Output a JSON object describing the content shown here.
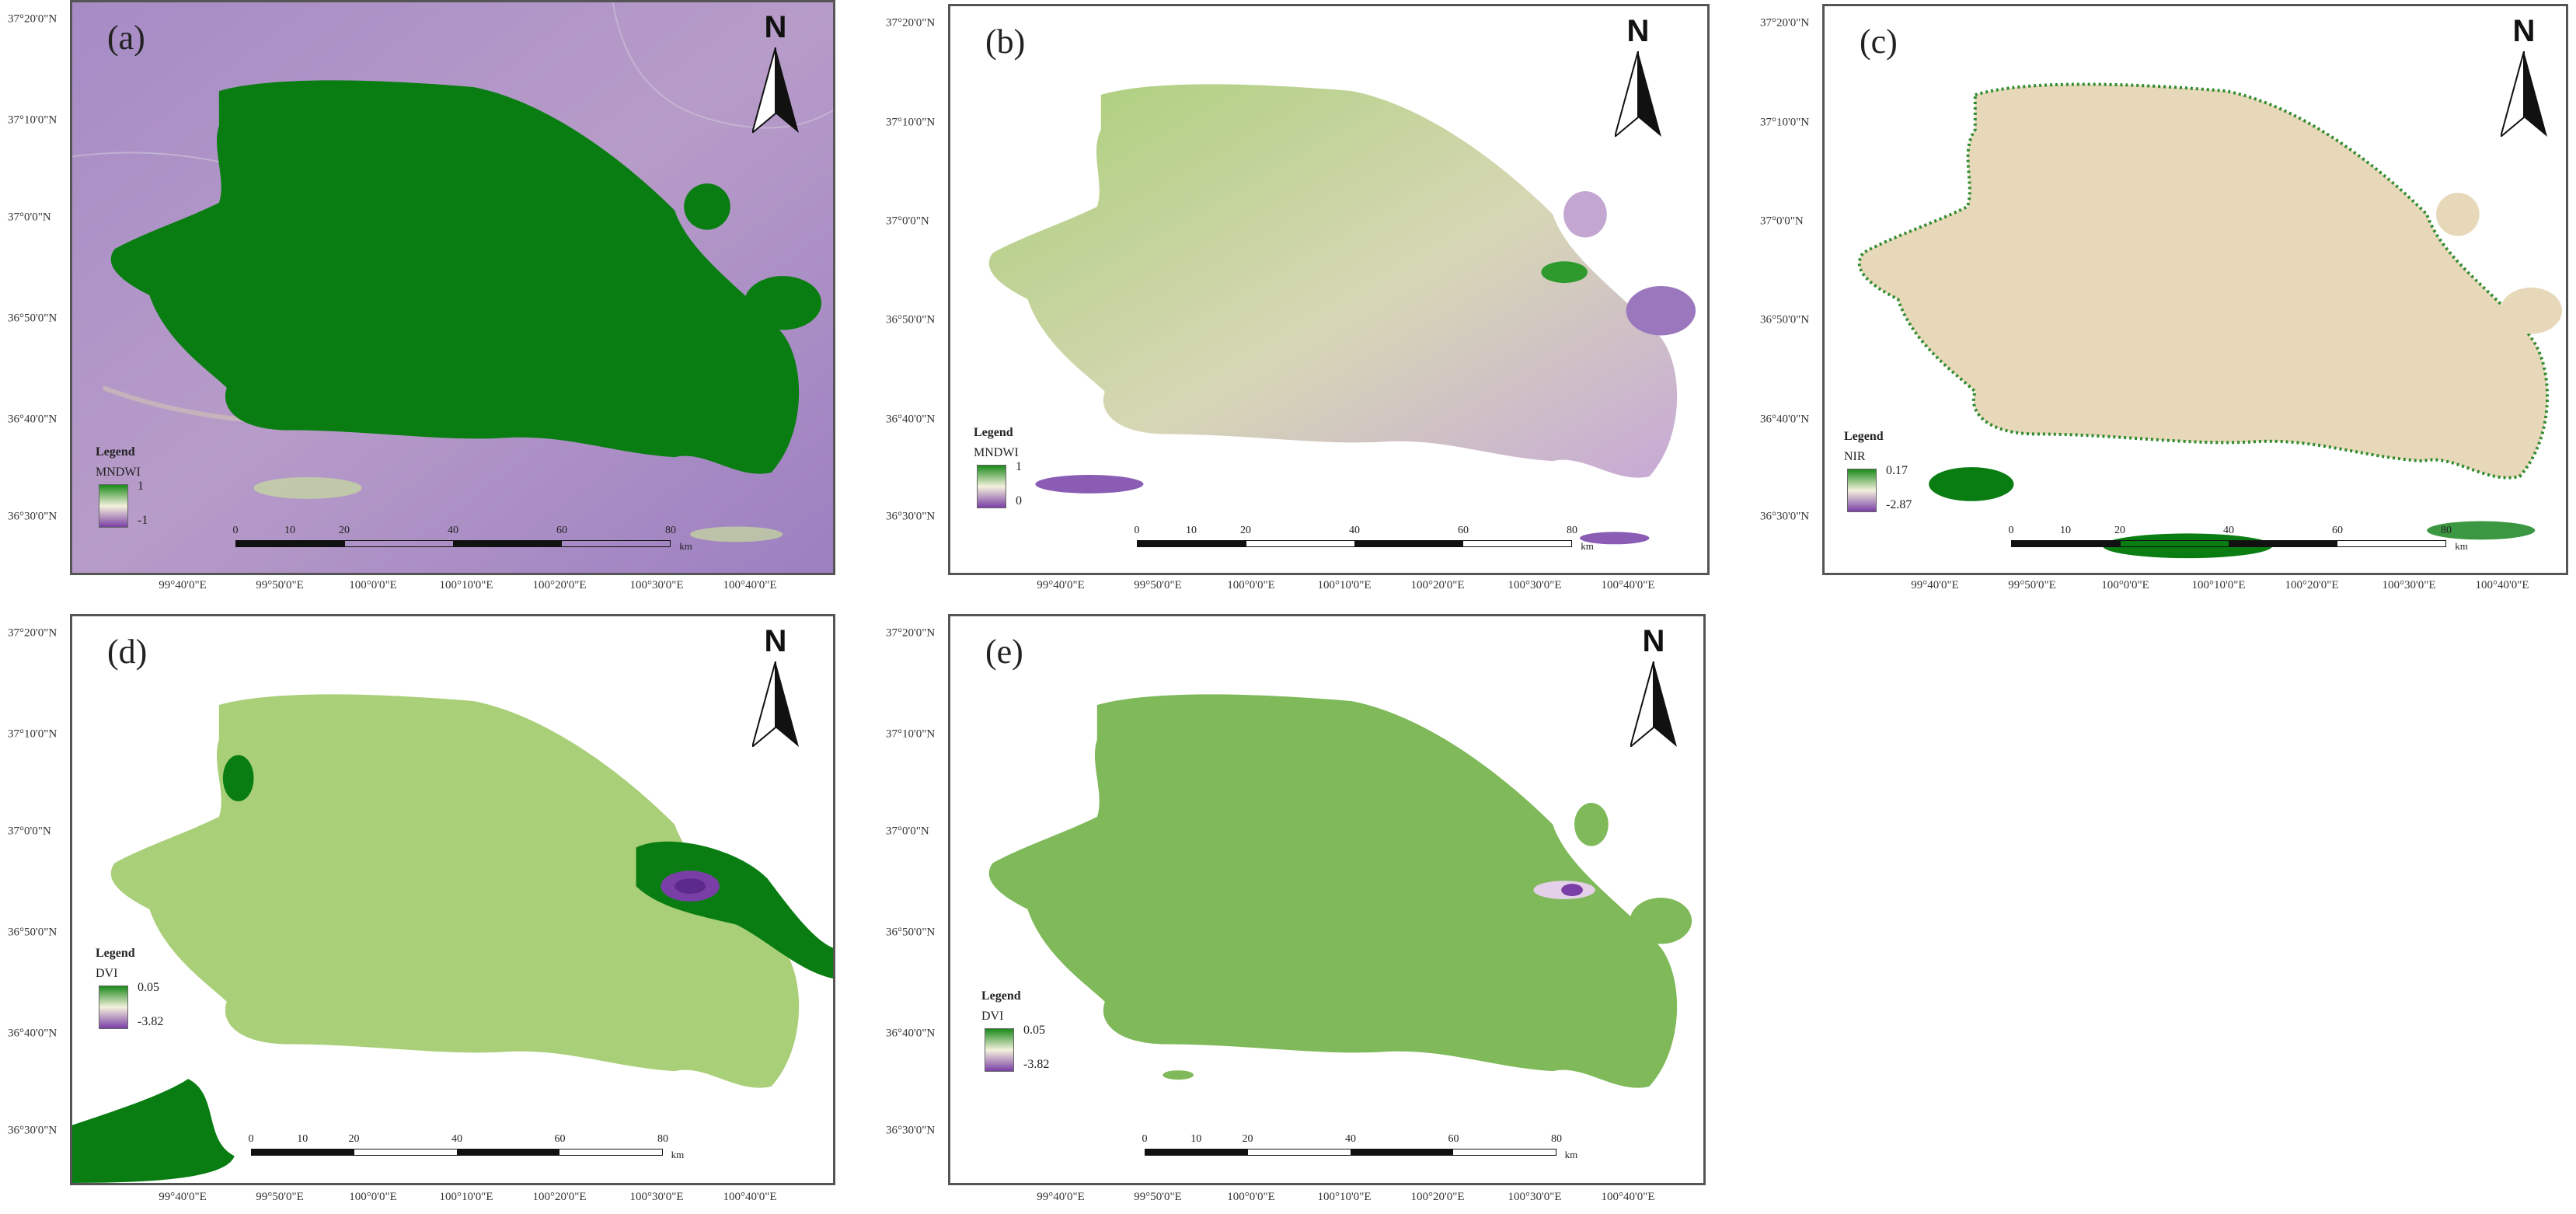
{
  "panels": [
    {
      "id": "a",
      "label": "(a)",
      "legend": {
        "title": "Legend",
        "index": "MNDWI",
        "max": "1",
        "min": "-1"
      },
      "lat_labels": [
        "37°20'0\"N",
        "37°10'0\"N",
        "37°0'0\"N",
        "36°50'0\"N",
        "36°40'0\"N",
        "36°30'0\"N"
      ],
      "lon_labels": [
        "99°40'0\"E",
        "99°50'0\"E",
        "100°0'0\"E",
        "100°10'0\"E",
        "100°20'0\"E",
        "100°30'0\"E",
        "100°40'0\"E"
      ],
      "scale": {
        "ticks": [
          "0",
          "10",
          "20",
          "40",
          "60",
          "80"
        ],
        "unit": "km"
      },
      "north": "N"
    },
    {
      "id": "b",
      "label": "(b)",
      "legend": {
        "title": "Legend",
        "index": "MNDWI",
        "max": "1",
        "min": "0"
      },
      "lat_labels": [
        "37°20'0\"N",
        "37°10'0\"N",
        "37°0'0\"N",
        "36°50'0\"N",
        "36°40'0\"N",
        "36°30'0\"N"
      ],
      "lon_labels": [
        "99°40'0\"E",
        "99°50'0\"E",
        "100°0'0\"E",
        "100°10'0\"E",
        "100°20'0\"E",
        "100°30'0\"E",
        "100°40'0\"E"
      ],
      "scale": {
        "ticks": [
          "0",
          "10",
          "20",
          "40",
          "60",
          "80"
        ],
        "unit": "km"
      },
      "north": "N"
    },
    {
      "id": "c",
      "label": "(c)",
      "legend": {
        "title": "Legend",
        "index": "NIR",
        "max": "0.17",
        "min": "-2.87"
      },
      "lat_labels": [
        "37°20'0\"N",
        "37°10'0\"N",
        "37°0'0\"N",
        "36°50'0\"N",
        "36°40'0\"N",
        "36°30'0\"N"
      ],
      "lon_labels": [
        "99°40'0\"E",
        "99°50'0\"E",
        "100°0'0\"E",
        "100°10'0\"E",
        "100°20'0\"E",
        "100°30'0\"E",
        "100°40'0\"E"
      ],
      "scale": {
        "ticks": [
          "0",
          "10",
          "20",
          "40",
          "60",
          "80"
        ],
        "unit": "km"
      },
      "north": "N"
    },
    {
      "id": "d",
      "label": "(d)",
      "legend": {
        "title": "Legend",
        "index": "DVI",
        "max": "0.05",
        "min": "-3.82"
      },
      "lat_labels": [
        "37°20'0\"N",
        "37°10'0\"N",
        "37°0'0\"N",
        "36°50'0\"N",
        "36°40'0\"N",
        "36°30'0\"N"
      ],
      "lon_labels": [
        "99°40'0\"E",
        "99°50'0\"E",
        "100°0'0\"E",
        "100°10'0\"E",
        "100°20'0\"E",
        "100°30'0\"E",
        "100°40'0\"E"
      ],
      "scale": {
        "ticks": [
          "0",
          "10",
          "20",
          "40",
          "60",
          "80"
        ],
        "unit": "km"
      },
      "north": "N"
    },
    {
      "id": "e",
      "label": "(e)",
      "legend": {
        "title": "Legend",
        "index": "DVI",
        "max": "0.05",
        "min": "-3.82"
      },
      "lat_labels": [
        "37°20'0\"N",
        "37°10'0\"N",
        "37°0'0\"N",
        "36°50'0\"N",
        "36°40'0\"N",
        "36°30'0\"N"
      ],
      "lon_labels": [
        "99°40'0\"E",
        "99°50'0\"E",
        "100°0'0\"E",
        "100°10'0\"E",
        "100°20'0\"E",
        "100°30'0\"E",
        "100°40'0\"E"
      ],
      "scale": {
        "ticks": [
          "0",
          "10",
          "20",
          "40",
          "60",
          "80"
        ],
        "unit": "km"
      },
      "north": "N"
    }
  ],
  "colors": {
    "water_green": "#0a7d12",
    "light_green": "#a9cf78",
    "mid_green": "#7fb95a",
    "land_purple": "#a98bc8",
    "beige": "#e6d8b8",
    "ramp_top": "#1b8a1b",
    "ramp_mid": "#f4f1dc",
    "ramp_bottom": "#7a3fa6"
  }
}
